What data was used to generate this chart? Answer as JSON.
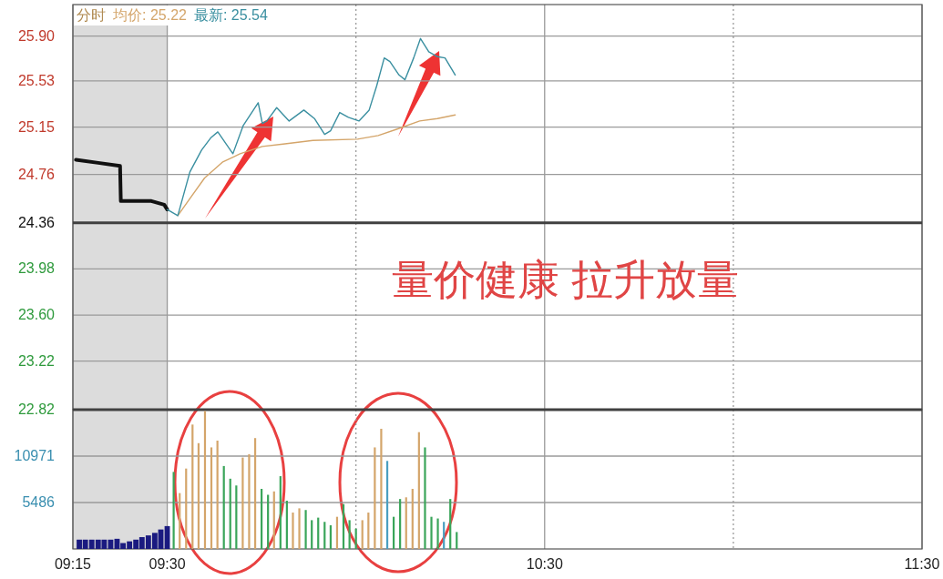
{
  "chart_data": [
    {
      "type": "line",
      "title": "分时",
      "legend": "top left",
      "xlim": [
        9.25,
        11.5
      ],
      "xticks": [
        9.25,
        9.5,
        {
          "value": 10,
          "label": null
        },
        10.5,
        {
          "value": 11,
          "label": null
        },
        11.5
      ],
      "ylim": [
        22.82,
        26.16
      ],
      "yticks": [
        22.82,
        23.22,
        {
          "value": 23.6,
          "label": "23.60"
        },
        23.98,
        24.36,
        24.76,
        25.15,
        25.53,
        {
          "value": 25.9,
          "label": "25.90"
        }
      ],
      "grid": true,
      "tick_labels": "y",
      "bands": [
        {
          "axis": "x",
          "from": 9.25,
          "to": 9.5,
          "color": "#dcdcdc"
        }
      ],
      "ref_lines": [
        {
          "axis": "y",
          "value": 24.36,
          "color": "#404040"
        }
      ],
      "annotations": [
        "量价健康 拉升放量"
      ],
      "series": [
        {
          "color": "#111111",
          "x": [
            9.258,
            9.317,
            9.375,
            9.377,
            9.458,
            9.492,
            9.5
          ],
          "values": [
            24.88,
            24.855,
            24.83,
            24.54,
            24.54,
            24.51,
            24.47
          ]
        },
        {
          "name": "均价: 25.22",
          "color": "#d4a56a",
          "x": [
            9.528,
            9.56,
            9.599,
            9.646,
            9.693,
            9.752,
            9.807,
            9.886,
            10.004,
            10.059,
            10.106,
            10.169,
            10.216,
            10.263
          ],
          "values": [
            24.42,
            24.56,
            24.73,
            24.86,
            24.93,
            24.99,
            25.01,
            25.04,
            25.05,
            25.08,
            25.13,
            25.2,
            25.22,
            25.25
          ]
        },
        {
          "name": "最新: 25.54",
          "color": "#3a8fa0",
          "x": [
            9.5,
            9.528,
            9.56,
            9.591,
            9.615,
            9.634,
            9.674,
            9.701,
            9.741,
            9.752,
            9.764,
            9.79,
            9.823,
            9.862,
            9.89,
            9.917,
            9.933,
            9.957,
            9.98,
            10.008,
            10.035,
            10.055,
            10.075,
            10.09,
            10.114,
            10.13,
            10.153,
            10.171,
            10.193,
            10.216,
            10.236,
            10.263
          ],
          "values": [
            24.47,
            24.42,
            24.78,
            24.96,
            25.06,
            25.11,
            24.93,
            25.16,
            25.35,
            25.18,
            25.2,
            25.31,
            25.2,
            25.29,
            25.22,
            25.09,
            25.12,
            25.27,
            25.23,
            25.2,
            25.29,
            25.49,
            25.72,
            25.69,
            25.58,
            25.54,
            25.72,
            25.88,
            25.77,
            25.73,
            25.72,
            25.58
          ]
        }
      ]
    },
    {
      "type": "bar",
      "xlim": [
        9.25,
        11.5
      ],
      "xticks": [
        {
          "value": 9.25,
          "label": "09:15"
        },
        {
          "value": 9.5,
          "label": "09:30"
        },
        {
          "value": 10,
          "label": null
        },
        {
          "value": 10.5,
          "label": "10:30"
        },
        {
          "value": 11,
          "label": null
        },
        {
          "value": 11.5,
          "label": "11:30"
        }
      ],
      "ylim": [
        0,
        16457
      ],
      "yticks": [
        5486,
        10971
      ],
      "grid": true,
      "bands": [
        {
          "axis": "x",
          "from": 9.25,
          "to": 9.5,
          "color": "#dcdcdc"
        }
      ],
      "series": [
        {
          "color": "#1a1a80",
          "x": [
            9.267,
            9.283,
            9.3,
            9.317,
            9.333,
            9.35,
            9.367,
            9.383,
            9.4,
            9.417,
            9.433,
            9.45,
            9.467,
            9.483,
            9.5
          ],
          "values": [
            1100,
            1100,
            1100,
            1100,
            1100,
            1100,
            1200,
            700,
            900,
            1100,
            1400,
            1600,
            1900,
            2300,
            2700
          ]
        },
        {
          "x": [
            9.517,
            9.533,
            9.55,
            9.567,
            9.583,
            9.6,
            9.617,
            9.633,
            9.65,
            9.667,
            9.683,
            9.7,
            9.717,
            9.733,
            9.75,
            9.767,
            9.783,
            9.8,
            9.817,
            9.833,
            9.85,
            9.867,
            9.883,
            9.9,
            9.917,
            9.933,
            9.95,
            9.967,
            9.983,
            10.0,
            10.017,
            10.033,
            10.05,
            10.067,
            10.083,
            10.1,
            10.117,
            10.133,
            10.15,
            10.167,
            10.183,
            10.2,
            10.217,
            10.233,
            10.25,
            10.267
          ],
          "values": [
            9100,
            6600,
            9500,
            14700,
            12500,
            16300,
            12000,
            12800,
            9800,
            8300,
            7500,
            10800,
            11200,
            13100,
            7100,
            6400,
            6800,
            8600,
            5700,
            4300,
            4800,
            4600,
            3400,
            3700,
            3200,
            2800,
            3800,
            5300,
            3400,
            2400,
            3400,
            4300,
            12000,
            14200,
            10400,
            3800,
            5900,
            6100,
            7100,
            13800,
            12000,
            3800,
            3600,
            3200,
            5900,
            2000
          ],
          "colors": [
            "#3aa55a",
            "#d4a56a",
            "#d4a56a",
            "#d4a56a",
            "#d4a56a",
            "#d4a56a",
            "#d4a56a",
            "#d4a56a",
            "#3aa55a",
            "#3aa55a",
            "#3aa55a",
            "#d4a56a",
            "#d4a56a",
            "#d4a56a",
            "#3aa55a",
            "#3aa55a",
            "#d4a56a",
            "#3aa55a",
            "#3aa55a",
            "#d4a56a",
            "#d4a56a",
            "#3aa55a",
            "#3aa55a",
            "#3aa55a",
            "#3aa55a",
            "#3aa55a",
            "#d4a56a",
            "#3aa55a",
            "#3aa55a",
            "#3aa55a",
            "#d4a56a",
            "#d4a56a",
            "#d4a56a",
            "#d4a56a",
            "#4a9fc0",
            "#3aa55a",
            "#3aa55a",
            "#d4a56a",
            "#d4a56a",
            "#d4a56a",
            "#3aa55a",
            "#3aa55a",
            "#3aa55a",
            "#4a9fc0",
            "#3aa55a",
            "#3aa55a"
          ]
        }
      ]
    }
  ]
}
